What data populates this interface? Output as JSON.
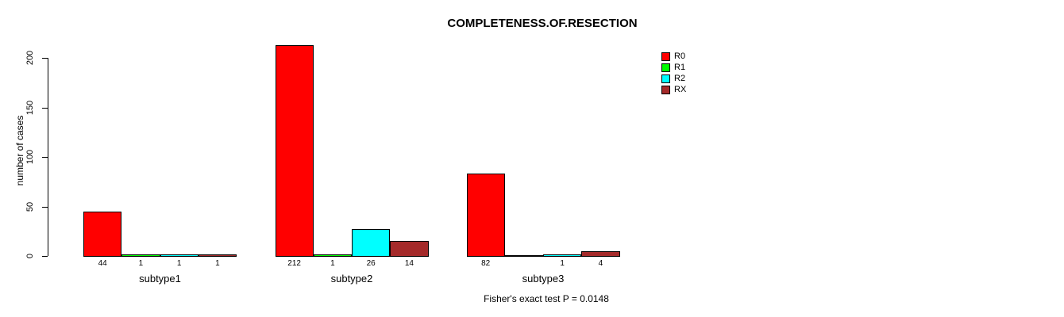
{
  "chart_data": {
    "type": "bar",
    "grouped": true,
    "title": "COMPLETENESS.OF.RESECTION",
    "xlabel": "",
    "ylabel": "number of cases",
    "categories": [
      "subtype1",
      "subtype2",
      "subtype3"
    ],
    "series": [
      {
        "name": "R0",
        "color": "#FF0000",
        "values": [
          44,
          212,
          82
        ]
      },
      {
        "name": "R1",
        "color": "#00FF00",
        "values": [
          1,
          1,
          null
        ]
      },
      {
        "name": "R2",
        "color": "#00FFFF",
        "values": [
          1,
          26,
          1
        ]
      },
      {
        "name": "RX",
        "color": "#A52A2A",
        "values": [
          1,
          14,
          4
        ]
      }
    ],
    "bar_labels": [
      [
        "44",
        "1",
        "1",
        "1"
      ],
      [
        "212",
        "1",
        "26",
        "14"
      ],
      [
        "82",
        "",
        "1",
        "4"
      ]
    ],
    "yticks": [
      0,
      50,
      100,
      150,
      200
    ],
    "ylim": [
      0,
      212
    ],
    "grid": false,
    "legend_position": "top-right",
    "annotation": "Fisher's exact test P = 0.0148"
  },
  "colors": {
    "bar_border": "#000000",
    "background": "#FFFFFF",
    "text": "#000000"
  }
}
